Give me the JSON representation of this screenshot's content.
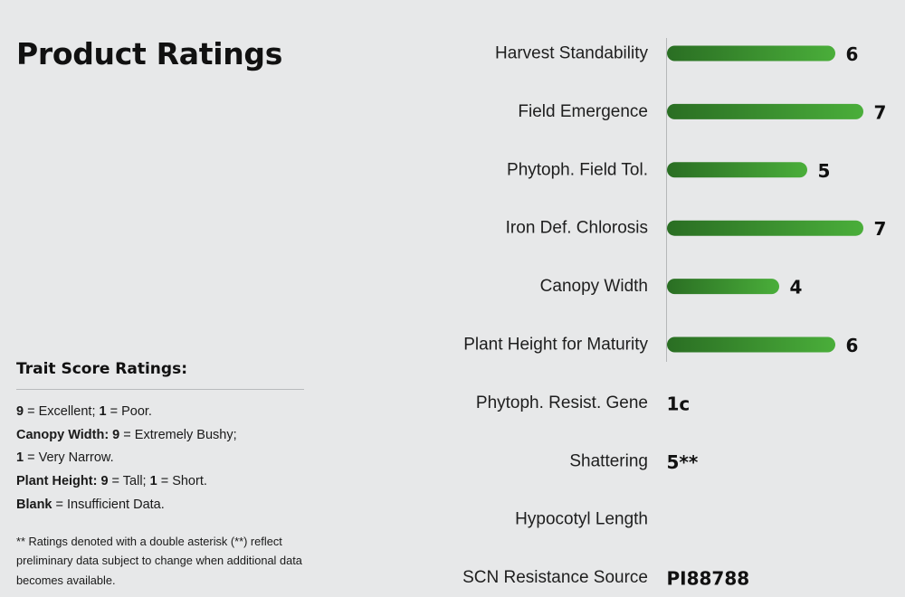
{
  "page": {
    "title": "Product Ratings"
  },
  "legend": {
    "heading": "Trait Score Ratings:",
    "lines": [
      [
        {
          "b": "9"
        },
        {
          "t": " = Excellent; "
        },
        {
          "b": "1"
        },
        {
          "t": " = Poor."
        }
      ],
      [
        {
          "b": "Canopy Width: 9"
        },
        {
          "t": " = Extremely Bushy;"
        }
      ],
      [
        {
          "b": "1"
        },
        {
          "t": " = Very Narrow."
        }
      ],
      [
        {
          "b": "Plant Height: 9"
        },
        {
          "t": " = Tall; "
        },
        {
          "b": "1"
        },
        {
          "t": " = Short."
        }
      ],
      [
        {
          "b": "Blank"
        },
        {
          "t": " = Insufficient Data."
        }
      ]
    ],
    "note": "** Ratings denoted with a double asterisk (**) reflect preliminary data subject to change when additional data becomes available."
  },
  "chart_data": {
    "type": "bar",
    "orientation": "horizontal",
    "scale_max": 9,
    "bar_color_start": "#2a6e23",
    "bar_color_end": "#4aae3a",
    "axis_color": "#b5b7b9",
    "rows": [
      {
        "label": "Harvest Standability",
        "value": 6,
        "display": "6"
      },
      {
        "label": "Field Emergence",
        "value": 7,
        "display": "7"
      },
      {
        "label": "Phytoph. Field Tol.",
        "value": 5,
        "display": "5"
      },
      {
        "label": "Iron Def. Chlorosis",
        "value": 7,
        "display": "7"
      },
      {
        "label": "Canopy Width",
        "value": 4,
        "display": "4"
      },
      {
        "label": "Plant Height for Maturity",
        "value": 6,
        "display": "6"
      },
      {
        "label": "Phytoph. Resist. Gene",
        "value": null,
        "display": "1c"
      },
      {
        "label": "Shattering",
        "value": null,
        "display": "5**"
      },
      {
        "label": "Hypocotyl Length",
        "value": null,
        "display": ""
      },
      {
        "label": "SCN Resistance Source",
        "value": null,
        "display": "PI88788"
      }
    ]
  }
}
